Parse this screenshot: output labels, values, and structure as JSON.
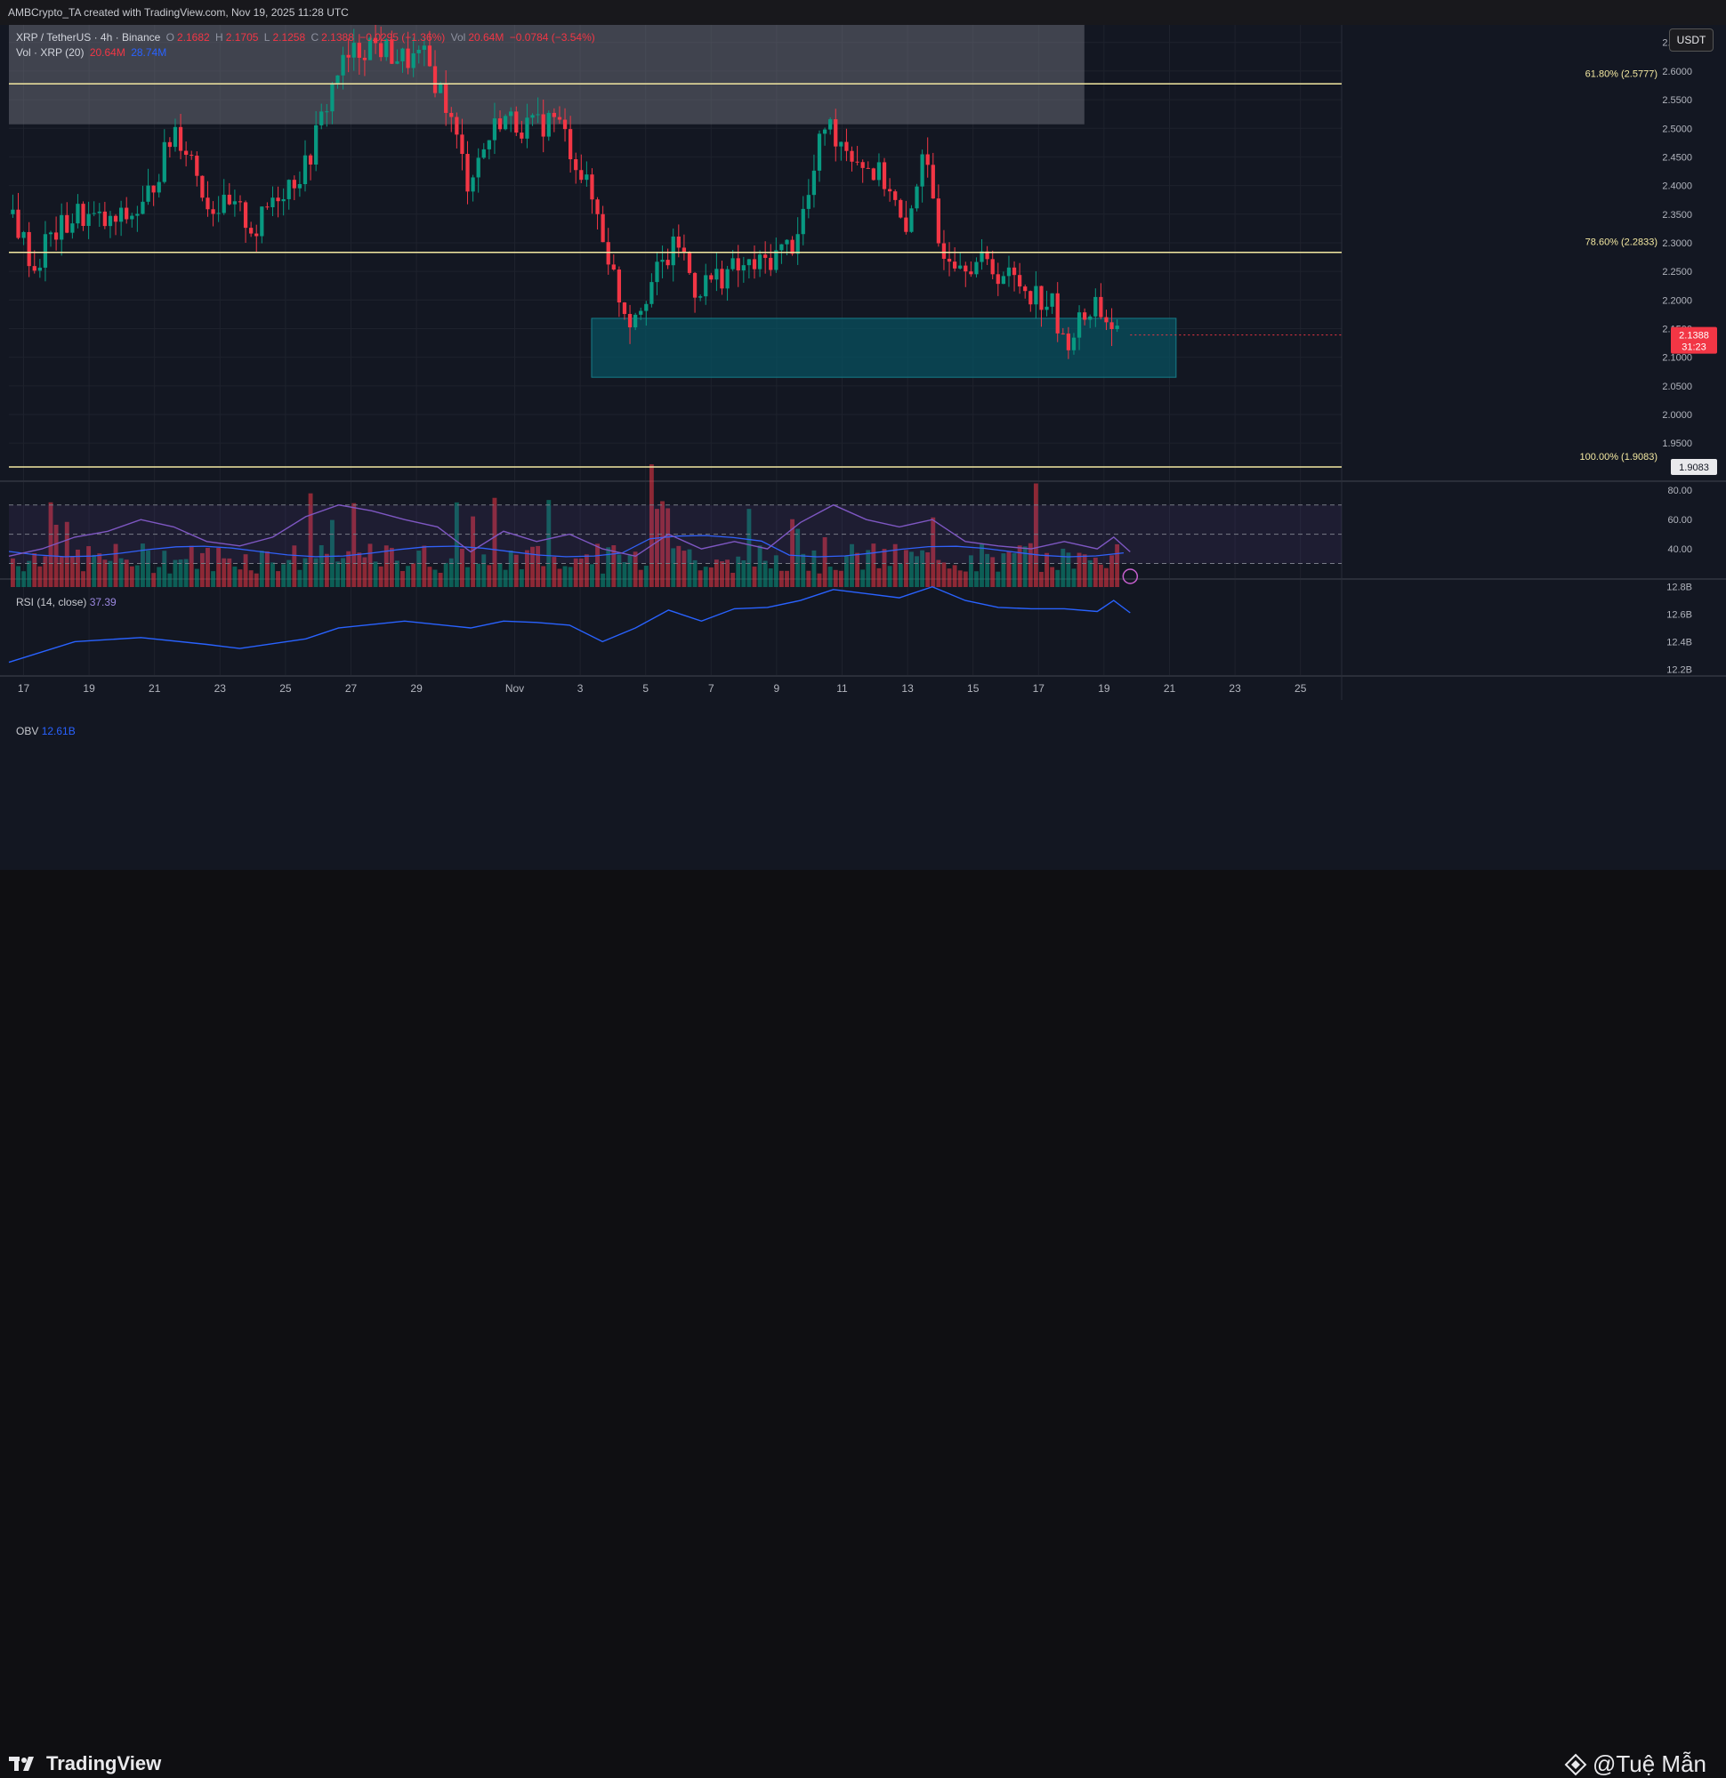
{
  "header": {
    "title": "AMBCrypto_TA created with TradingView.com, Nov 19, 2025 11:28 UTC"
  },
  "legend": {
    "symbol": "XRP / TetherUS · 4h · Binance",
    "o_label": "O",
    "o": "2.1682",
    "h_label": "H",
    "h": "2.1705",
    "l_label": "L",
    "l": "2.1258",
    "c_label": "C",
    "c": "2.1388",
    "change": "−0.0295 (−1.36%)",
    "vol_label": "Vol",
    "vol": "20.64M",
    "vol_change": "−0.0784 (−3.54%)",
    "vol_ind": "Vol · XRP (20)",
    "vol_ind_v1": "20.64M",
    "vol_ind_v2": "28.74M"
  },
  "currency_button": "USDT",
  "colors": {
    "up": "#089981",
    "down": "#f23645",
    "fib": "#f3e8a1",
    "zone": "#0e4650",
    "rsi": "#7e57c2",
    "obv": "#2962ff",
    "background": "#131722"
  },
  "chart_data": [
    {
      "type": "candlestick",
      "title": "XRP / TetherUS · 4h · Binance",
      "y_axis_ticks": [
        "2.6500",
        "2.6000",
        "2.5500",
        "2.5000",
        "2.4500",
        "2.4000",
        "2.3500",
        "2.3000",
        "2.2500",
        "2.2000",
        "2.1500",
        "2.1000",
        "2.0500",
        "2.0000",
        "1.9500"
      ],
      "x_axis_ticks": [
        "17",
        "19",
        "21",
        "23",
        "25",
        "27",
        "29",
        "Nov",
        "3",
        "5",
        "7",
        "9",
        "11",
        "13",
        "15",
        "17",
        "19",
        "21",
        "23",
        "25"
      ],
      "ylim": [
        1.885,
        2.69
      ],
      "last_price": "2.1388",
      "countdown": "31:23",
      "fib_levels": [
        {
          "label": "61.80% (2.5777)",
          "value": 2.5777
        },
        {
          "label": "78.60% (2.2833)",
          "value": 2.2833
        },
        {
          "label": "100.00% (1.9083)",
          "value": 1.9083
        }
      ],
      "fib_value_tag": "1.9083",
      "zones": [
        {
          "name": "supply",
          "from_date": "Oct 17",
          "to_date": "Nov 12",
          "low": 2.507,
          "high": 2.69
        },
        {
          "name": "demand",
          "from_date": "Nov 3",
          "to_date": "Nov 21",
          "low": 2.065,
          "high": 2.168
        }
      ],
      "path_points": [
        [
          0,
          2.35
        ],
        [
          0.7,
          2.25
        ],
        [
          1,
          2.3
        ],
        [
          2,
          2.35
        ],
        [
          3,
          2.33
        ],
        [
          4,
          2.36
        ],
        [
          5,
          2.5
        ],
        [
          5.5,
          2.45
        ],
        [
          6,
          2.37
        ],
        [
          7,
          2.35
        ],
        [
          7.5,
          2.32
        ],
        [
          8,
          2.38
        ],
        [
          9,
          2.43
        ],
        [
          10,
          2.6
        ],
        [
          10.5,
          2.63
        ],
        [
          11,
          2.65
        ],
        [
          12,
          2.62
        ],
        [
          12.7,
          2.62
        ],
        [
          13.3,
          2.55
        ],
        [
          14,
          2.41
        ],
        [
          15,
          2.52
        ],
        [
          16,
          2.5
        ],
        [
          16.7,
          2.52
        ],
        [
          17.3,
          2.45
        ],
        [
          18,
          2.35
        ],
        [
          18.7,
          2.2
        ],
        [
          19,
          2.17
        ],
        [
          20,
          2.26
        ],
        [
          20.5,
          2.3
        ],
        [
          21,
          2.22
        ],
        [
          22,
          2.25
        ],
        [
          23,
          2.26
        ],
        [
          24,
          2.3
        ],
        [
          24.5,
          2.38
        ],
        [
          25,
          2.51
        ],
        [
          26,
          2.45
        ],
        [
          27,
          2.4
        ],
        [
          27.5,
          2.3
        ],
        [
          28,
          2.47
        ],
        [
          28.5,
          2.3
        ],
        [
          29,
          2.28
        ],
        [
          30,
          2.26
        ],
        [
          31,
          2.23
        ],
        [
          32,
          2.19
        ],
        [
          32.3,
          2.12
        ],
        [
          33,
          2.17
        ],
        [
          33.3,
          2.2
        ],
        [
          34,
          2.14
        ]
      ]
    },
    {
      "type": "bar",
      "title": "Vol · XRP (20)",
      "last": "20.64M",
      "ma": "28.74M"
    },
    {
      "type": "line",
      "title": "RSI (14, close)",
      "last": "37.39",
      "y_axis_ticks": [
        "80.00",
        "60.00",
        "40.00"
      ],
      "bands": [
        70,
        50,
        30
      ],
      "points": [
        [
          0,
          35
        ],
        [
          1,
          40
        ],
        [
          2,
          48
        ],
        [
          3,
          52
        ],
        [
          4,
          60
        ],
        [
          5,
          55
        ],
        [
          6,
          45
        ],
        [
          7,
          42
        ],
        [
          8,
          48
        ],
        [
          9,
          62
        ],
        [
          10,
          70
        ],
        [
          11,
          66
        ],
        [
          12,
          60
        ],
        [
          13,
          55
        ],
        [
          14,
          38
        ],
        [
          15,
          52
        ],
        [
          16,
          45
        ],
        [
          17,
          50
        ],
        [
          18,
          40
        ],
        [
          19,
          35
        ],
        [
          20,
          50
        ],
        [
          21,
          40
        ],
        [
          22,
          45
        ],
        [
          23,
          40
        ],
        [
          24,
          58
        ],
        [
          25,
          70
        ],
        [
          26,
          60
        ],
        [
          27,
          55
        ],
        [
          28,
          60
        ],
        [
          29,
          45
        ],
        [
          30,
          42
        ],
        [
          31,
          40
        ],
        [
          32,
          45
        ],
        [
          33,
          40
        ],
        [
          33.5,
          48
        ],
        [
          34,
          38
        ]
      ]
    },
    {
      "type": "line",
      "title": "OBV",
      "last": "12.61B",
      "y_axis_ticks": [
        "12.8B",
        "12.6B",
        "12.4B",
        "12.2B"
      ],
      "points": [
        [
          0,
          12.25
        ],
        [
          2,
          12.4
        ],
        [
          4,
          12.43
        ],
        [
          6,
          12.38
        ],
        [
          7,
          12.35
        ],
        [
          9,
          12.42
        ],
        [
          10,
          12.5
        ],
        [
          12,
          12.55
        ],
        [
          14,
          12.5
        ],
        [
          15,
          12.55
        ],
        [
          16,
          12.54
        ],
        [
          17,
          12.52
        ],
        [
          18,
          12.4
        ],
        [
          19,
          12.5
        ],
        [
          20,
          12.63
        ],
        [
          21,
          12.55
        ],
        [
          22,
          12.64
        ],
        [
          23,
          12.65
        ],
        [
          24,
          12.7
        ],
        [
          25,
          12.78
        ],
        [
          26,
          12.75
        ],
        [
          27,
          12.72
        ],
        [
          28,
          12.8
        ],
        [
          29,
          12.7
        ],
        [
          30,
          12.65
        ],
        [
          31,
          12.64
        ],
        [
          32,
          12.64
        ],
        [
          33,
          12.62
        ],
        [
          33.5,
          12.7
        ],
        [
          34,
          12.61
        ]
      ]
    }
  ],
  "footer": {
    "brand": "TradingView",
    "watermark": "@Tuệ Mẫn"
  }
}
